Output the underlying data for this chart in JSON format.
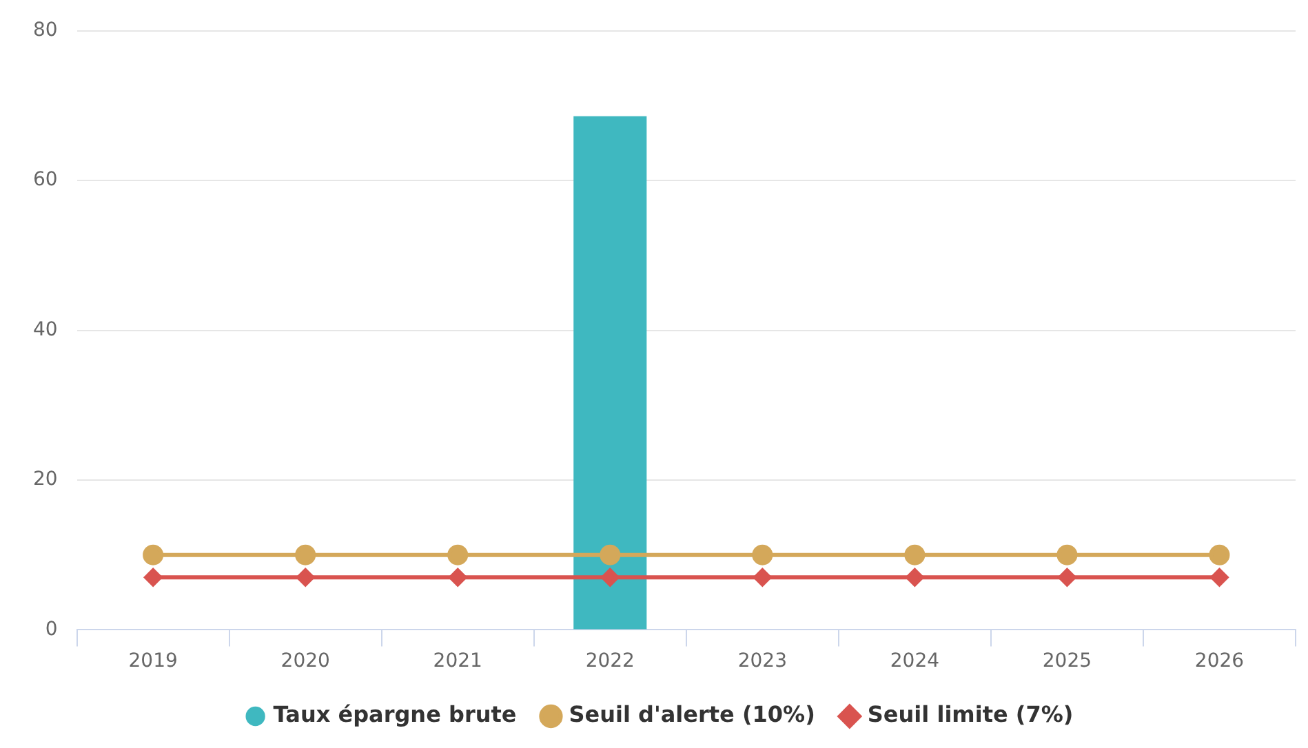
{
  "chart_data": {
    "type": "bar",
    "categories": [
      "2019",
      "2020",
      "2021",
      "2022",
      "2023",
      "2024",
      "2025",
      "2026"
    ],
    "series": [
      {
        "name": "Taux épargne brute",
        "color": "#3fb8c0",
        "values": [
          null,
          null,
          null,
          68.6,
          null,
          null,
          null,
          null
        ]
      },
      {
        "name": "Seuil d'alerte (10%)",
        "type": "line",
        "marker": "circle",
        "color": "#d4a85a",
        "values": [
          10,
          10,
          10,
          10,
          10,
          10,
          10,
          10
        ]
      },
      {
        "name": "Seuil limite (7%)",
        "type": "line",
        "marker": "diamond",
        "color": "#d9534f",
        "values": [
          7,
          7,
          7,
          7,
          7,
          7,
          7,
          7
        ]
      }
    ],
    "ylim": [
      0,
      80
    ],
    "yticks": [
      0,
      20,
      40,
      60,
      80
    ],
    "grid": "y",
    "legend": "bottom"
  }
}
